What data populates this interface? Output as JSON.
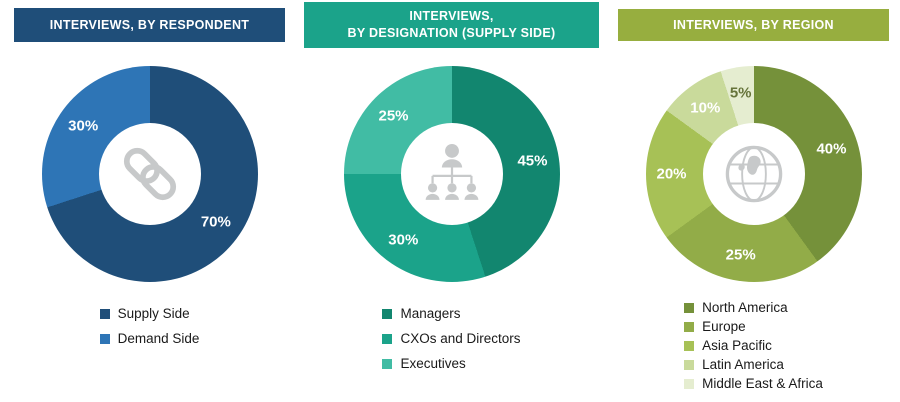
{
  "chart_data": [
    {
      "type": "donut",
      "title": "INTERVIEWS, BY RESPONDENT",
      "header_color": "#1F4E79",
      "icon": "chain-link-icon",
      "start_angle_deg": 0,
      "direction": "clockwise",
      "legend_position": "bottom",
      "segments": [
        {
          "label": "Supply Side",
          "value_pct": 70,
          "color": "#1F4E79",
          "label_color": "#ffffff"
        },
        {
          "label": "Demand Side",
          "value_pct": 30,
          "color": "#2E75B6",
          "label_color": "#ffffff"
        }
      ]
    },
    {
      "type": "donut",
      "title": "INTERVIEWS,\nBY DESIGNATION (SUPPLY SIDE)",
      "header_color": "#1BA38A",
      "icon": "org-hierarchy-icon",
      "start_angle_deg": 0,
      "direction": "clockwise",
      "legend_position": "bottom",
      "segments": [
        {
          "label": "Managers",
          "value_pct": 45,
          "color": "#12866F",
          "label_color": "#ffffff"
        },
        {
          "label": "CXOs and Directors",
          "value_pct": 30,
          "color": "#1BA38A",
          "label_color": "#ffffff"
        },
        {
          "label": "Executives",
          "value_pct": 25,
          "color": "#41BCA4",
          "label_color": "#ffffff"
        }
      ]
    },
    {
      "type": "donut",
      "title": "INTERVIEWS, BY REGION",
      "header_color": "#97AE3F",
      "icon": "globe-icon",
      "start_angle_deg": 0,
      "direction": "clockwise",
      "legend_position": "bottom",
      "segments": [
        {
          "label": "North America",
          "value_pct": 40,
          "color": "#75913A",
          "label_color": "#ffffff"
        },
        {
          "label": "Europe",
          "value_pct": 25,
          "color": "#92AC48",
          "label_color": "#ffffff"
        },
        {
          "label": "Asia Pacific",
          "value_pct": 20,
          "color": "#A7C156",
          "label_color": "#ffffff"
        },
        {
          "label": "Latin America",
          "value_pct": 10,
          "color": "#C9DA9B",
          "label_color": "#ffffff"
        },
        {
          "label": "Middle East & Africa",
          "value_pct": 5,
          "color": "#E5EDD0",
          "label_color": "#66743A"
        }
      ]
    }
  ]
}
